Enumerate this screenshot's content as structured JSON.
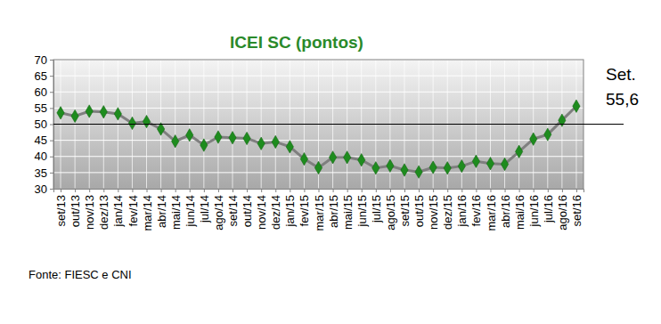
{
  "chart_data": {
    "type": "line",
    "title": "ICEI SC (pontos)",
    "categories": [
      "set/13",
      "out/13",
      "nov/13",
      "dez/13",
      "jan/14",
      "fev/14",
      "mar/14",
      "abr/14",
      "mai/14",
      "jun/14",
      "jul/14",
      "ago/14",
      "set/14",
      "out/14",
      "nov/14",
      "dez/14",
      "jan/15",
      "fev/15",
      "mar/15",
      "abr/15",
      "mai/15",
      "jun/15",
      "jul/15",
      "ago/15",
      "set/15",
      "out/15",
      "nov/15",
      "dez/15",
      "jan/16",
      "fev/16",
      "mar/16",
      "abr/16",
      "mai/16",
      "jun/16",
      "jul/16",
      "ago/16",
      "set/16"
    ],
    "values": [
      53.5,
      52.5,
      54,
      53.8,
      53.2,
      50.3,
      50.8,
      48.5,
      44.7,
      46.6,
      43.5,
      46,
      45.8,
      45.6,
      44,
      44.5,
      43,
      39.2,
      36.5,
      39.7,
      39.7,
      38.9,
      36.4,
      37.1,
      35.8,
      35.2,
      36.6,
      36.4,
      37,
      38.5,
      37.8,
      37.6,
      41.5,
      45.4,
      46.8,
      51.2,
      55.6
    ],
    "color": "#1e8c1e",
    "marker": "diamond",
    "ylim": [
      30,
      70
    ],
    "yticks": [
      30,
      35,
      40,
      45,
      50,
      55,
      60,
      65,
      70
    ],
    "grid": true,
    "reference_line": 50,
    "annotations": [
      "Set.",
      "55,6"
    ],
    "source": "Fonte: FIESC e CNI"
  }
}
